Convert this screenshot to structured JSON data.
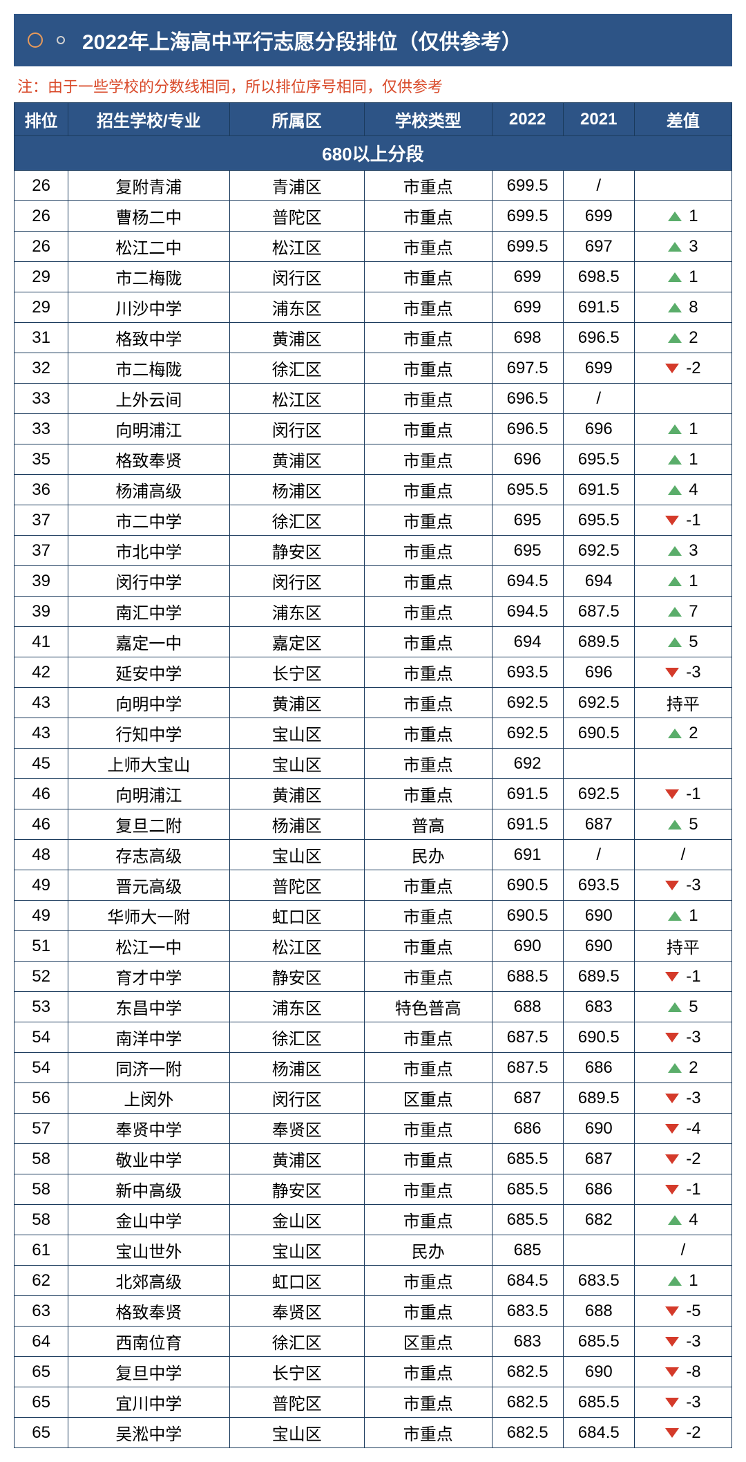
{
  "title": "2022年上海高中平行志愿分段排位（仅供参考）",
  "note": "注：由于一些学校的分数线相同，所以排位序号相同，仅供参考",
  "columns": [
    "排位",
    "招生学校/专业",
    "所属区",
    "学校类型",
    "2022",
    "2021",
    "差值"
  ],
  "section_label": "680以上分段",
  "colors": {
    "header_bg": "#2d5486",
    "header_text": "#ffffff",
    "note_text": "#d94a2a",
    "border": "#1a3a5c",
    "up": "#5aad6a",
    "down": "#d43a2a",
    "circle_big": "#e89a5a"
  },
  "rows": [
    {
      "rank": "26",
      "school": "复附青浦",
      "district": "青浦区",
      "type": "市重点",
      "y2022": "699.5",
      "y2021": "/",
      "diff": "",
      "dir": ""
    },
    {
      "rank": "26",
      "school": "曹杨二中",
      "district": "普陀区",
      "type": "市重点",
      "y2022": "699.5",
      "y2021": "699",
      "diff": "1",
      "dir": "up"
    },
    {
      "rank": "26",
      "school": "松江二中",
      "district": "松江区",
      "type": "市重点",
      "y2022": "699.5",
      "y2021": "697",
      "diff": "3",
      "dir": "up"
    },
    {
      "rank": "29",
      "school": "市二梅陇",
      "district": "闵行区",
      "type": "市重点",
      "y2022": "699",
      "y2021": "698.5",
      "diff": "1",
      "dir": "up"
    },
    {
      "rank": "29",
      "school": "川沙中学",
      "district": "浦东区",
      "type": "市重点",
      "y2022": "699",
      "y2021": "691.5",
      "diff": "8",
      "dir": "up"
    },
    {
      "rank": "31",
      "school": "格致中学",
      "district": "黄浦区",
      "type": "市重点",
      "y2022": "698",
      "y2021": "696.5",
      "diff": "2",
      "dir": "up"
    },
    {
      "rank": "32",
      "school": "市二梅陇",
      "district": "徐汇区",
      "type": "市重点",
      "y2022": "697.5",
      "y2021": "699",
      "diff": "-2",
      "dir": "down"
    },
    {
      "rank": "33",
      "school": "上外云间",
      "district": "松江区",
      "type": "市重点",
      "y2022": "696.5",
      "y2021": "/",
      "diff": "",
      "dir": ""
    },
    {
      "rank": "33",
      "school": "向明浦江",
      "district": "闵行区",
      "type": "市重点",
      "y2022": "696.5",
      "y2021": "696",
      "diff": "1",
      "dir": "up"
    },
    {
      "rank": "35",
      "school": "格致奉贤",
      "district": "黄浦区",
      "type": "市重点",
      "y2022": "696",
      "y2021": "695.5",
      "diff": "1",
      "dir": "up"
    },
    {
      "rank": "36",
      "school": "杨浦高级",
      "district": "杨浦区",
      "type": "市重点",
      "y2022": "695.5",
      "y2021": "691.5",
      "diff": "4",
      "dir": "up"
    },
    {
      "rank": "37",
      "school": "市二中学",
      "district": "徐汇区",
      "type": "市重点",
      "y2022": "695",
      "y2021": "695.5",
      "diff": "-1",
      "dir": "down"
    },
    {
      "rank": "37",
      "school": "市北中学",
      "district": "静安区",
      "type": "市重点",
      "y2022": "695",
      "y2021": "692.5",
      "diff": "3",
      "dir": "up"
    },
    {
      "rank": "39",
      "school": "闵行中学",
      "district": "闵行区",
      "type": "市重点",
      "y2022": "694.5",
      "y2021": "694",
      "diff": "1",
      "dir": "up"
    },
    {
      "rank": "39",
      "school": "南汇中学",
      "district": "浦东区",
      "type": "市重点",
      "y2022": "694.5",
      "y2021": "687.5",
      "diff": "7",
      "dir": "up"
    },
    {
      "rank": "41",
      "school": "嘉定一中",
      "district": "嘉定区",
      "type": "市重点",
      "y2022": "694",
      "y2021": "689.5",
      "diff": "5",
      "dir": "up"
    },
    {
      "rank": "42",
      "school": "延安中学",
      "district": "长宁区",
      "type": "市重点",
      "y2022": "693.5",
      "y2021": "696",
      "diff": "-3",
      "dir": "down"
    },
    {
      "rank": "43",
      "school": "向明中学",
      "district": "黄浦区",
      "type": "市重点",
      "y2022": "692.5",
      "y2021": "692.5",
      "diff": "持平",
      "dir": ""
    },
    {
      "rank": "43",
      "school": "行知中学",
      "district": "宝山区",
      "type": "市重点",
      "y2022": "692.5",
      "y2021": "690.5",
      "diff": "2",
      "dir": "up"
    },
    {
      "rank": "45",
      "school": "上师大宝山",
      "district": "宝山区",
      "type": "市重点",
      "y2022": "692",
      "y2021": "",
      "diff": "",
      "dir": ""
    },
    {
      "rank": "46",
      "school": "向明浦江",
      "district": "黄浦区",
      "type": "市重点",
      "y2022": "691.5",
      "y2021": "692.5",
      "diff": "-1",
      "dir": "down"
    },
    {
      "rank": "46",
      "school": "复旦二附",
      "district": "杨浦区",
      "type": "普高",
      "y2022": "691.5",
      "y2021": "687",
      "diff": "5",
      "dir": "up"
    },
    {
      "rank": "48",
      "school": "存志高级",
      "district": "宝山区",
      "type": "民办",
      "y2022": "691",
      "y2021": "/",
      "diff": "/",
      "dir": ""
    },
    {
      "rank": "49",
      "school": "晋元高级",
      "district": "普陀区",
      "type": "市重点",
      "y2022": "690.5",
      "y2021": "693.5",
      "diff": "-3",
      "dir": "down"
    },
    {
      "rank": "49",
      "school": "华师大一附",
      "district": "虹口区",
      "type": "市重点",
      "y2022": "690.5",
      "y2021": "690",
      "diff": "1",
      "dir": "up"
    },
    {
      "rank": "51",
      "school": "松江一中",
      "district": "松江区",
      "type": "市重点",
      "y2022": "690",
      "y2021": "690",
      "diff": "持平",
      "dir": ""
    },
    {
      "rank": "52",
      "school": "育才中学",
      "district": "静安区",
      "type": "市重点",
      "y2022": "688.5",
      "y2021": "689.5",
      "diff": "-1",
      "dir": "down"
    },
    {
      "rank": "53",
      "school": "东昌中学",
      "district": "浦东区",
      "type": "特色普高",
      "y2022": "688",
      "y2021": "683",
      "diff": "5",
      "dir": "up"
    },
    {
      "rank": "54",
      "school": "南洋中学",
      "district": "徐汇区",
      "type": "市重点",
      "y2022": "687.5",
      "y2021": "690.5",
      "diff": "-3",
      "dir": "down"
    },
    {
      "rank": "54",
      "school": "同济一附",
      "district": "杨浦区",
      "type": "市重点",
      "y2022": "687.5",
      "y2021": "686",
      "diff": "2",
      "dir": "up"
    },
    {
      "rank": "56",
      "school": "上闵外",
      "district": "闵行区",
      "type": "区重点",
      "y2022": "687",
      "y2021": "689.5",
      "diff": "-3",
      "dir": "down"
    },
    {
      "rank": "57",
      "school": "奉贤中学",
      "district": "奉贤区",
      "type": "市重点",
      "y2022": "686",
      "y2021": "690",
      "diff": "-4",
      "dir": "down"
    },
    {
      "rank": "58",
      "school": "敬业中学",
      "district": "黄浦区",
      "type": "市重点",
      "y2022": "685.5",
      "y2021": "687",
      "diff": "-2",
      "dir": "down"
    },
    {
      "rank": "58",
      "school": "新中高级",
      "district": "静安区",
      "type": "市重点",
      "y2022": "685.5",
      "y2021": "686",
      "diff": "-1",
      "dir": "down"
    },
    {
      "rank": "58",
      "school": "金山中学",
      "district": "金山区",
      "type": "市重点",
      "y2022": "685.5",
      "y2021": "682",
      "diff": "4",
      "dir": "up"
    },
    {
      "rank": "61",
      "school": "宝山世外",
      "district": "宝山区",
      "type": "民办",
      "y2022": "685",
      "y2021": "",
      "diff": "/",
      "dir": ""
    },
    {
      "rank": "62",
      "school": "北郊高级",
      "district": "虹口区",
      "type": "市重点",
      "y2022": "684.5",
      "y2021": "683.5",
      "diff": "1",
      "dir": "up"
    },
    {
      "rank": "63",
      "school": "格致奉贤",
      "district": "奉贤区",
      "type": "市重点",
      "y2022": "683.5",
      "y2021": "688",
      "diff": "-5",
      "dir": "down"
    },
    {
      "rank": "64",
      "school": "西南位育",
      "district": "徐汇区",
      "type": "区重点",
      "y2022": "683",
      "y2021": "685.5",
      "diff": "-3",
      "dir": "down"
    },
    {
      "rank": "65",
      "school": "复旦中学",
      "district": "长宁区",
      "type": "市重点",
      "y2022": "682.5",
      "y2021": "690",
      "diff": "-8",
      "dir": "down"
    },
    {
      "rank": "65",
      "school": "宜川中学",
      "district": "普陀区",
      "type": "市重点",
      "y2022": "682.5",
      "y2021": "685.5",
      "diff": "-3",
      "dir": "down"
    },
    {
      "rank": "65",
      "school": "吴淞中学",
      "district": "宝山区",
      "type": "市重点",
      "y2022": "682.5",
      "y2021": "684.5",
      "diff": "-2",
      "dir": "down"
    }
  ]
}
